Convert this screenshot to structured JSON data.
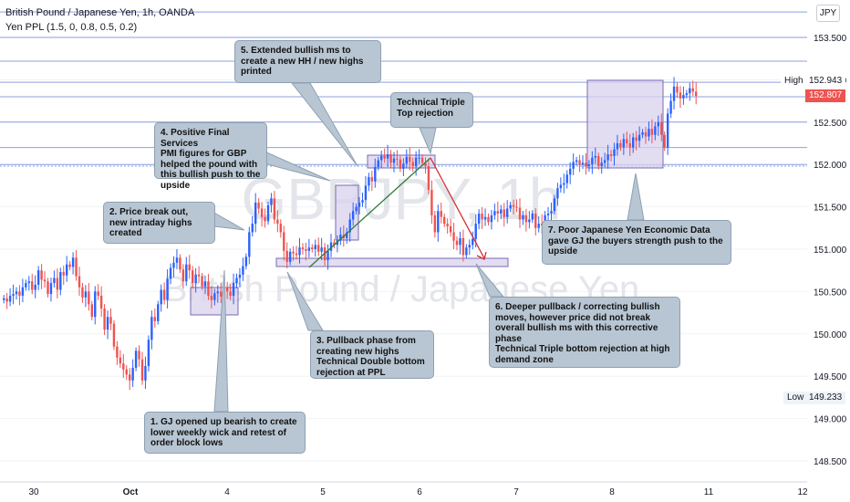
{
  "header": {
    "symbol_title": "British Pound / Japanese Yen, 1h, OANDA",
    "indicator": "Yen PPL (1.5, 0, 0.8, 0.5, 0.2)",
    "currency": "JPY"
  },
  "watermark": {
    "ticker": "GBPJPY, 1h",
    "name": "British Pound / Japanese Yen"
  },
  "price_labels": {
    "high_label": "High",
    "high_value": "152.943",
    "current_value": "152.807",
    "low_label": "Low",
    "low_value": "149.233"
  },
  "annotations": [
    {
      "id": "note-1",
      "text": "1. GJ opened up bearish to create\nlower weekly wick and retest of\norder block lows"
    },
    {
      "id": "note-2",
      "text": "2. Price break out,\nnew intraday highs\ncreated"
    },
    {
      "id": "note-3",
      "text": "3. Pullback phase from\ncreating new highs\nTechnical Double bottom\nrejection at PPL"
    },
    {
      "id": "note-4",
      "text": "4. Positive Final Services\nPMI figures for GBP\nhelped the pound with\nthis bullish push to the\nupside"
    },
    {
      "id": "note-5",
      "text": "5. Extended bullish ms to\ncreate a new HH / new highs\nprinted"
    },
    {
      "id": "note-top",
      "text": "Technical Triple\nTop rejection"
    },
    {
      "id": "note-6",
      "text": "6. Deeper pullback / correcting bullish\nmoves, however price did not break\noverall bullish ms with  this corrective\nphase\nTechnical Triple bottom rejection at high\ndemand zone"
    },
    {
      "id": "note-7",
      "text": "7. Poor Japanese Yen Economic Data\ngave GJ the buyers strength push to the\nupside"
    }
  ],
  "colors": {
    "bull": "#2962ff",
    "bear": "#ef5350",
    "ppl_line": "#5b7bd5",
    "zone": "#d9d2ee",
    "zone_border": "#7a6bb0",
    "note_bg": "#b8c6d3",
    "uptrend_line": "#2e7d32",
    "downtrend_line": "#d32f2f"
  },
  "chart_data": {
    "type": "candlestick",
    "symbol": "GBPJPY",
    "timeframe": "1h",
    "y_ticks": [
      148.5,
      149.0,
      149.5,
      150.0,
      150.5,
      151.0,
      151.5,
      152.0,
      152.5,
      153.0,
      153.5
    ],
    "y_tick_labels": [
      "148.500",
      "149.000",
      "149.500",
      "150.000",
      "150.500",
      "151.000",
      "151.500",
      "152.000",
      "152.500",
      "153.000",
      "153.500"
    ],
    "ylim": [
      148.3,
      153.75
    ],
    "x_ticks": [
      "30",
      "Oct",
      "4",
      "5",
      "6",
      "7",
      "8",
      "11",
      "12"
    ],
    "ppl_levels": [
      153.8,
      153.5,
      153.22,
      152.97,
      152.8,
      152.5,
      152.2,
      152.0,
      151.98
    ],
    "high": 152.943,
    "low": 149.233,
    "last": 152.807,
    "closes": [
      150.42,
      150.38,
      150.45,
      150.47,
      150.5,
      150.45,
      150.55,
      150.6,
      150.62,
      150.52,
      150.58,
      150.75,
      150.64,
      150.62,
      150.47,
      150.6,
      150.66,
      150.52,
      150.73,
      150.69,
      150.82,
      150.79,
      150.9,
      150.68,
      150.55,
      150.43,
      150.5,
      150.35,
      150.2,
      150.5,
      150.45,
      150.3,
      150.05,
      150.2,
      150.12,
      149.85,
      149.72,
      149.65,
      149.58,
      149.52,
      149.45,
      149.6,
      149.8,
      149.7,
      149.45,
      149.62,
      149.93,
      150.2,
      150.15,
      150.35,
      150.52,
      150.4,
      150.65,
      150.78,
      150.84,
      150.9,
      150.76,
      150.62,
      150.82,
      150.75,
      150.6,
      150.7,
      150.68,
      150.56,
      150.62,
      150.45,
      150.4,
      150.48,
      150.5,
      150.44,
      150.55,
      150.5,
      150.45,
      150.6,
      150.66,
      150.7,
      150.8,
      150.91,
      151.2,
      151.3,
      151.55,
      151.48,
      151.38,
      151.33,
      151.52,
      151.6,
      151.35,
      151.3,
      151.2,
      150.98,
      150.85,
      150.97,
      150.95,
      150.93,
      151.02,
      151.0,
      150.98,
      151.02,
      151.0,
      151.05,
      150.97,
      151.02,
      150.87,
      150.98,
      151.08,
      151.05,
      151.1,
      151.17,
      151.13,
      151.2,
      151.35,
      151.45,
      151.5,
      151.55,
      151.58,
      151.75,
      151.85,
      151.8,
      151.97,
      152.05,
      152.1,
      152.07,
      152.12,
      152.02,
      152.07,
      152.06,
      151.95,
      152.01,
      152.09,
      152.03,
      151.98,
      152.08,
      152.08,
      152.02,
      151.98,
      151.7,
      151.4,
      151.2,
      151.45,
      151.38,
      151.3,
      151.27,
      151.2,
      151.1,
      151.05,
      151.13,
      150.93,
      151.02,
      151.05,
      151.12,
      151.3,
      151.42,
      151.35,
      151.38,
      151.32,
      151.4,
      151.45,
      151.42,
      151.47,
      151.38,
      151.48,
      151.52,
      151.5,
      151.49,
      151.35,
      151.4,
      151.32,
      151.35,
      151.42,
      151.25,
      151.3,
      151.28,
      151.4,
      151.42,
      151.45,
      151.6,
      151.72,
      151.76,
      151.78,
      151.88,
      151.95,
      152.03,
      152.05,
      152.0,
      152.02,
      151.98,
      152.0,
      152.08,
      152.1,
      151.98,
      152.02,
      152.05,
      152.12,
      152.1,
      152.18,
      152.25,
      152.2,
      152.3,
      152.25,
      152.2,
      152.32,
      152.28,
      152.35,
      152.38,
      152.33,
      152.42,
      152.35,
      152.45,
      152.5,
      152.35,
      152.2,
      152.6,
      152.75,
      152.92,
      152.85,
      152.78,
      152.82,
      152.84,
      152.9,
      152.86,
      152.81
    ]
  }
}
